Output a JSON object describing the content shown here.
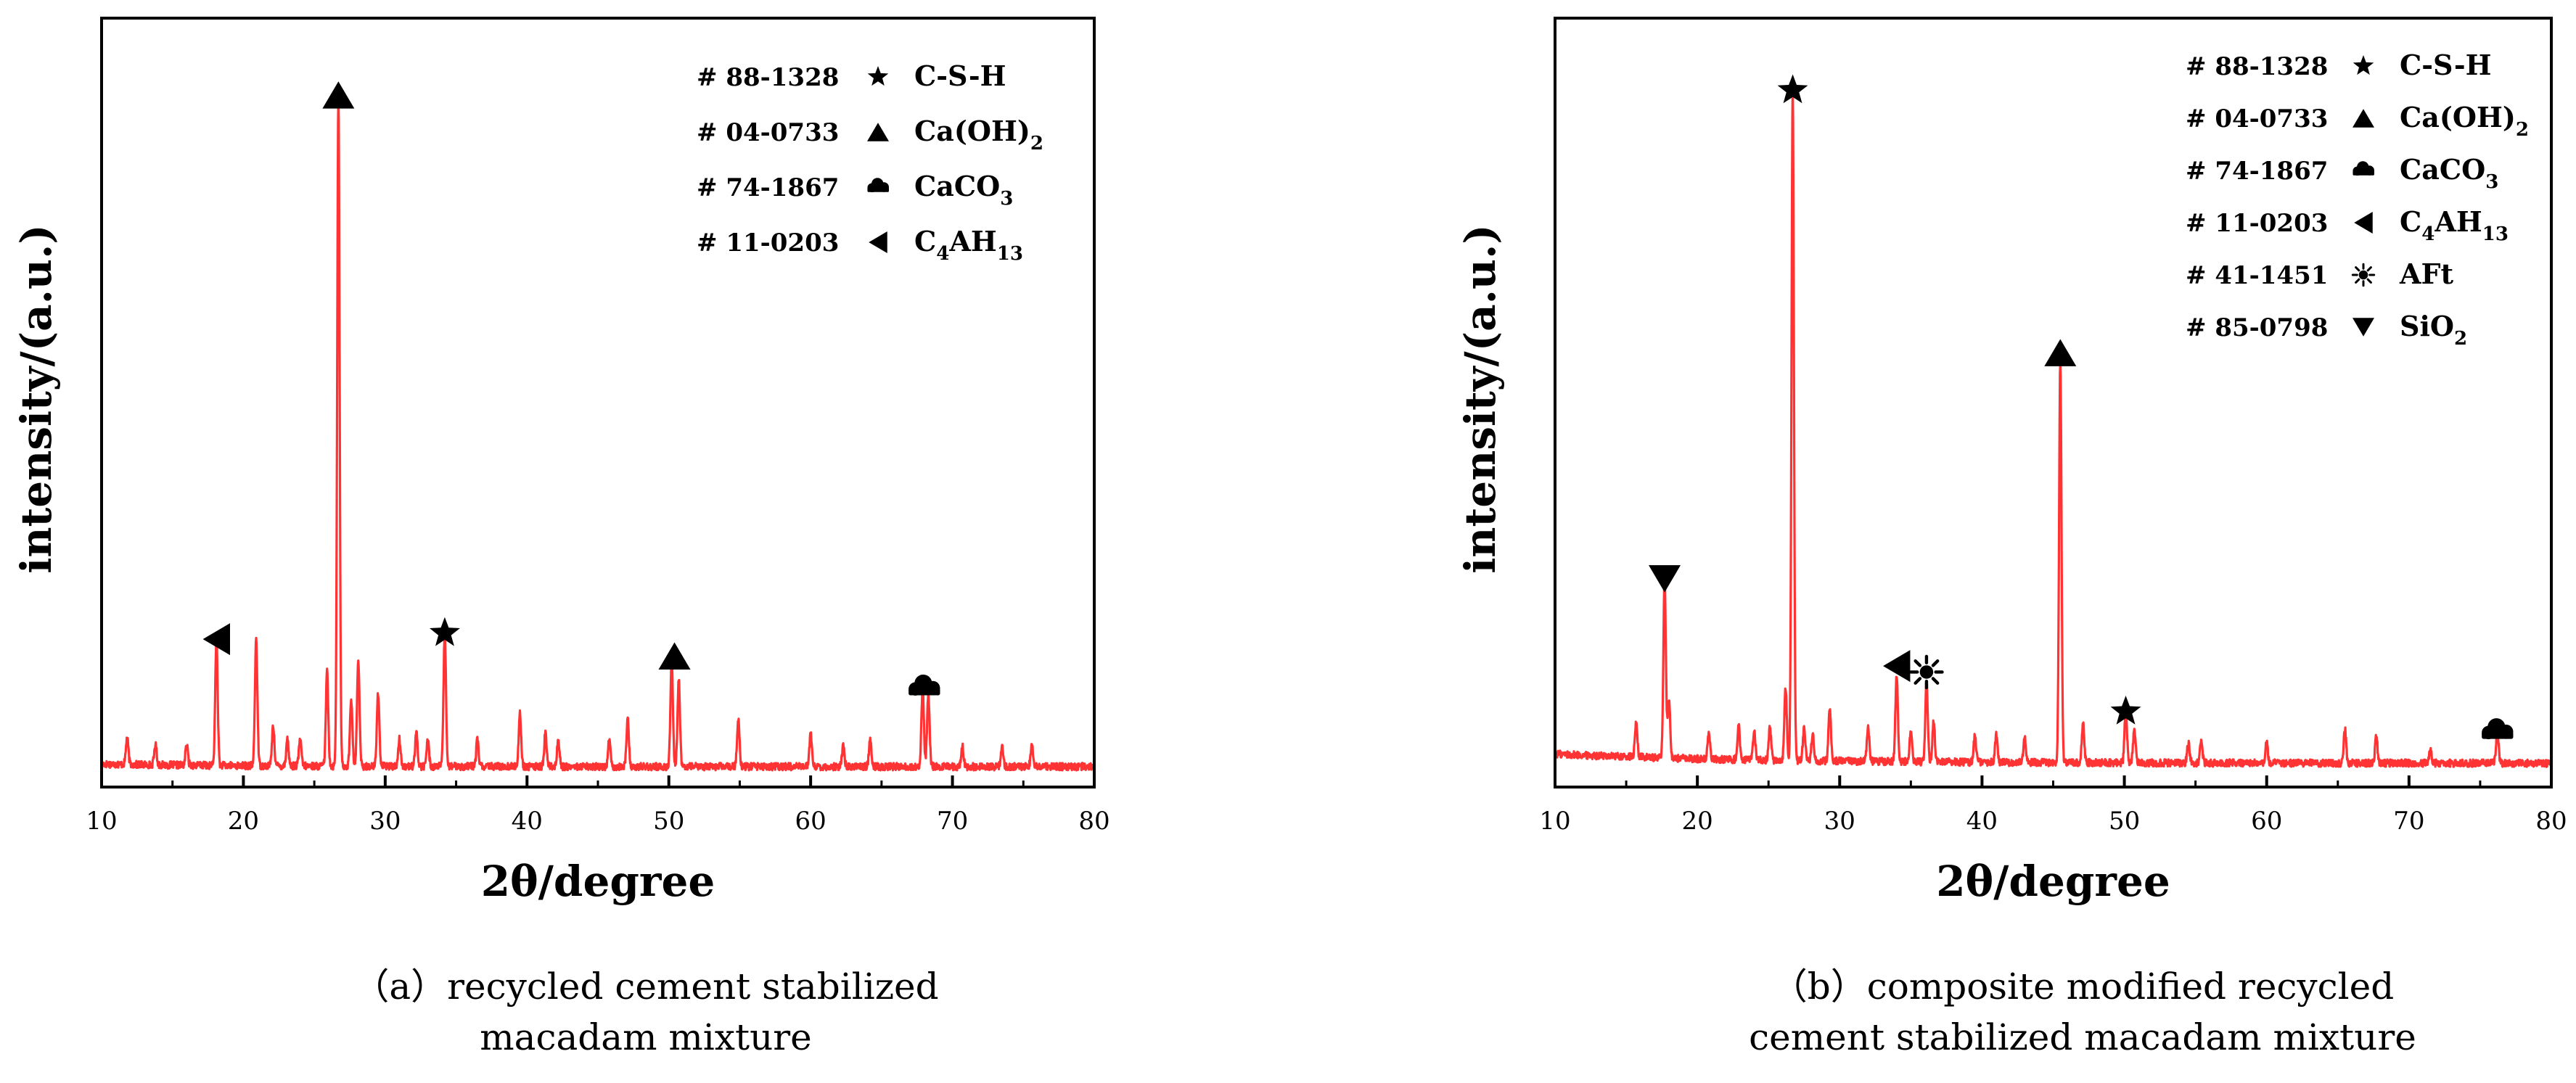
{
  "chart_data": [
    {
      "type": "line",
      "panel": "a",
      "xlabel": "2θ/degree",
      "ylabel": "intensity/(a.u.)",
      "xlim": [
        10,
        80
      ],
      "xticks": [
        10,
        20,
        30,
        40,
        50,
        60,
        70,
        80
      ],
      "ylim": [
        0,
        100
      ],
      "caption_lines": [
        "（a）recycled cement stabilized",
        "macadam mixture"
      ],
      "series": [
        {
          "name": "XRD pattern (a)",
          "color": "#ff3333",
          "baseline": 2.5,
          "peaks": [
            [
              11.8,
              4
            ],
            [
              13.8,
              3
            ],
            [
              16.0,
              3
            ],
            [
              18.1,
              19
            ],
            [
              20.9,
              19
            ],
            [
              22.1,
              6
            ],
            [
              23.1,
              4
            ],
            [
              24.0,
              4
            ],
            [
              25.9,
              14
            ],
            [
              26.7,
              100
            ],
            [
              27.6,
              10
            ],
            [
              28.1,
              16
            ],
            [
              29.5,
              11
            ],
            [
              31.0,
              4
            ],
            [
              32.2,
              5
            ],
            [
              33.0,
              4
            ],
            [
              34.2,
              20
            ],
            [
              36.5,
              4
            ],
            [
              39.5,
              8
            ],
            [
              41.3,
              5
            ],
            [
              42.2,
              4
            ],
            [
              45.8,
              4
            ],
            [
              47.1,
              7
            ],
            [
              50.2,
              16
            ],
            [
              50.7,
              13
            ],
            [
              54.9,
              7
            ],
            [
              60.0,
              5
            ],
            [
              62.3,
              3
            ],
            [
              64.2,
              4
            ],
            [
              67.9,
              12
            ],
            [
              68.3,
              11
            ],
            [
              70.7,
              3
            ],
            [
              73.5,
              3
            ],
            [
              75.6,
              3
            ]
          ]
        }
      ],
      "markers": [
        {
          "symbol": "left-triangle",
          "x": 18.1,
          "y": 21.5
        },
        {
          "symbol": "triangle",
          "x": 26.7,
          "y": 102.6
        },
        {
          "symbol": "star",
          "x": 34.2,
          "y": 22.4
        },
        {
          "symbol": "triangle",
          "x": 50.4,
          "y": 19.0
        },
        {
          "symbol": "cloud",
          "x": 68.0,
          "y": 14.2
        }
      ],
      "legend": [
        {
          "code": "# 88-1328",
          "symbol": "star",
          "phase": "C-S-H"
        },
        {
          "code": "# 04-0733",
          "symbol": "triangle",
          "phase": "Ca(OH)",
          "sub": "2",
          "tail": ""
        },
        {
          "code": "# 74-1867",
          "symbol": "cloud",
          "phase": "CaCO",
          "sub": "3",
          "tail": ""
        },
        {
          "code": "# 11-0203",
          "symbol": "left-triangle",
          "phase": "C",
          "sub": "4",
          "tail": "AH",
          "sub2": "13"
        }
      ]
    },
    {
      "type": "line",
      "panel": "b",
      "xlabel": "2θ/degree",
      "ylabel": "intensity/(a.u.)",
      "xlim": [
        10,
        80
      ],
      "xticks": [
        10,
        20,
        30,
        40,
        50,
        60,
        70,
        80
      ],
      "ylim": [
        0,
        100
      ],
      "caption_lines": [
        "（b）composite modified recycled",
        "cement stabilized macadam mixture"
      ],
      "series": [
        {
          "name": "XRD pattern (b)",
          "color": "#ff3333",
          "baseline": 3.0,
          "peaks": [
            [
              15.7,
              5
            ],
            [
              17.7,
              27
            ],
            [
              18.0,
              9
            ],
            [
              20.8,
              4
            ],
            [
              22.9,
              5
            ],
            [
              24.0,
              4
            ],
            [
              25.1,
              5
            ],
            [
              26.2,
              11
            ],
            [
              26.7,
              100
            ],
            [
              27.5,
              5
            ],
            [
              28.1,
              4
            ],
            [
              29.3,
              8
            ],
            [
              32.0,
              5
            ],
            [
              34.0,
              13
            ],
            [
              35.0,
              5
            ],
            [
              36.1,
              12
            ],
            [
              36.6,
              6
            ],
            [
              39.5,
              4
            ],
            [
              41.0,
              4
            ],
            [
              43.0,
              4
            ],
            [
              45.5,
              60
            ],
            [
              47.1,
              6
            ],
            [
              50.1,
              8
            ],
            [
              50.7,
              5
            ],
            [
              54.5,
              3
            ],
            [
              55.4,
              3
            ],
            [
              60.0,
              3
            ],
            [
              65.5,
              5
            ],
            [
              67.7,
              4
            ],
            [
              71.5,
              2
            ],
            [
              76.2,
              5
            ]
          ]
        }
      ],
      "markers": [
        {
          "symbol": "down-triangle",
          "x": 17.7,
          "y": 30.5
        },
        {
          "symbol": "star",
          "x": 26.7,
          "y": 103.3
        },
        {
          "symbol": "left-triangle",
          "x": 34.0,
          "y": 17.5
        },
        {
          "symbol": "sun",
          "x": 36.1,
          "y": 16.6
        },
        {
          "symbol": "triangle",
          "x": 45.5,
          "y": 64.2
        },
        {
          "symbol": "star",
          "x": 50.1,
          "y": 10.7
        },
        {
          "symbol": "cloud",
          "x": 76.2,
          "y": 7.7
        }
      ],
      "legend": [
        {
          "code": "# 88-1328",
          "symbol": "star",
          "phase": "C-S-H"
        },
        {
          "code": "# 04-0733",
          "symbol": "triangle",
          "phase": "Ca(OH)",
          "sub": "2",
          "tail": ""
        },
        {
          "code": "# 74-1867",
          "symbol": "cloud",
          "phase": "CaCO",
          "sub": "3",
          "tail": ""
        },
        {
          "code": "# 11-0203",
          "symbol": "left-triangle",
          "phase": "C",
          "sub": "4",
          "tail": "AH",
          "sub2": "13"
        },
        {
          "code": "# 41-1451",
          "symbol": "sun",
          "phase": "AFt"
        },
        {
          "code": "# 85-0798",
          "symbol": "down-triangle",
          "phase": "SiO",
          "sub": "2",
          "tail": ""
        }
      ]
    }
  ]
}
